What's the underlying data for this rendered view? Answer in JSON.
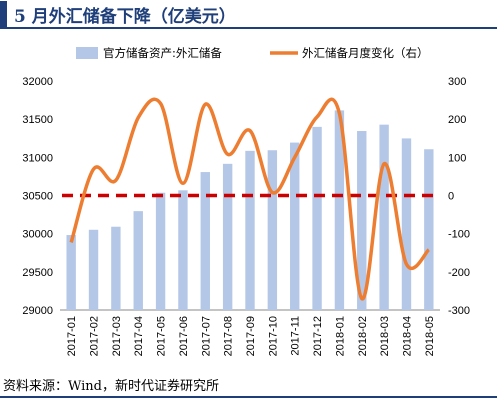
{
  "title": "5 月外汇储备下降（亿美元）",
  "source": "资料来源：Wind，新时代证券研究所",
  "colors": {
    "bars": "#b4c7e7",
    "line": "#ed7d31",
    "zero_line": "#cc0000",
    "accent": "#1f3f7a"
  },
  "chart_data": {
    "type": "bar+line",
    "categories": [
      "2017-01",
      "2017-02",
      "2017-03",
      "2017-04",
      "2017-05",
      "2017-06",
      "2017-07",
      "2017-08",
      "2017-09",
      "2017-10",
      "2017-11",
      "2017-12",
      "2018-01",
      "2018-02",
      "2018-03",
      "2018-04",
      "2018-05"
    ],
    "series": [
      {
        "name": "官方储备资产:外汇储备",
        "type": "bar",
        "axis": "left",
        "values": [
          29982,
          30051,
          30091,
          30295,
          30536,
          30568,
          30807,
          30915,
          31085,
          31093,
          31193,
          31399,
          31615,
          31345,
          31428,
          31248,
          31106
        ]
      },
      {
        "name": "外汇储备月度变化（右）",
        "type": "line",
        "axis": "right",
        "values": [
          -123,
          69,
          40,
          204,
          241,
          32,
          239,
          108,
          170,
          8,
          100,
          206,
          215,
          -270,
          83,
          -180,
          -142
        ]
      }
    ],
    "y_left": {
      "min": 29000,
      "max": 32000,
      "ticks": [
        29000,
        29500,
        30000,
        30500,
        31000,
        31500,
        32000
      ]
    },
    "y_right": {
      "min": -300,
      "max": 300,
      "ticks": [
        -300,
        -200,
        -100,
        0,
        100,
        200,
        300
      ]
    },
    "reference_line": {
      "axis": "right",
      "value": 0,
      "style": "dashed"
    },
    "legend_position": "top"
  }
}
